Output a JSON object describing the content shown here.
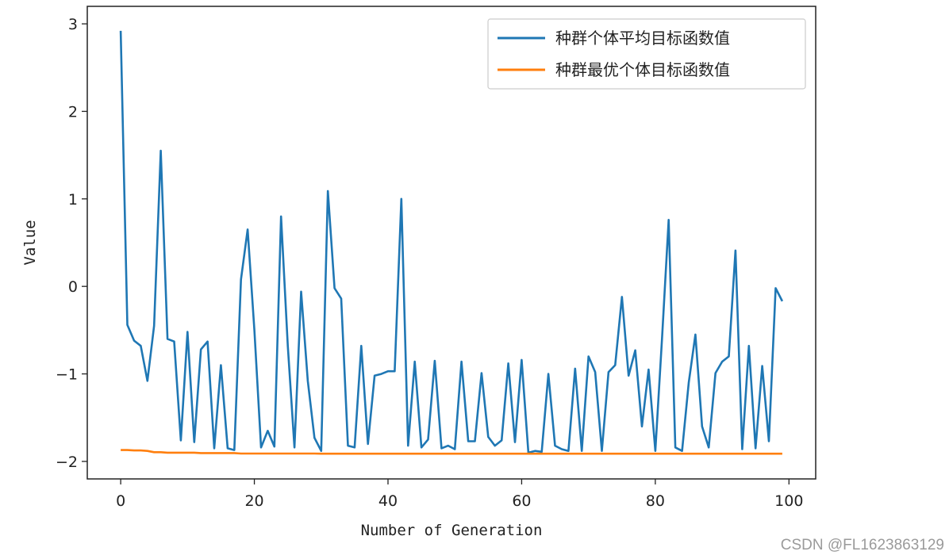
{
  "watermark": "CSDN @FL1623863129",
  "chart_data": {
    "type": "line",
    "title": "",
    "xlabel": "Number of Generation",
    "ylabel": "Value",
    "xlim": [
      -5,
      104
    ],
    "ylim": [
      -2.2,
      3.2
    ],
    "xticks": [
      0,
      20,
      40,
      60,
      80,
      100
    ],
    "yticks": [
      -2,
      -1,
      0,
      1,
      2,
      3
    ],
    "ytick_labels": [
      "−2",
      "−1",
      "0",
      "1",
      "2",
      "3"
    ],
    "grid": false,
    "legend_position": "top-right",
    "series": [
      {
        "name": "种群个体平均目标函数值",
        "color": "#1f77b4",
        "x": [
          0,
          1,
          2,
          3,
          4,
          5,
          6,
          7,
          8,
          9,
          10,
          11,
          12,
          13,
          14,
          15,
          16,
          17,
          18,
          19,
          20,
          21,
          22,
          23,
          24,
          25,
          26,
          27,
          28,
          29,
          30,
          31,
          32,
          33,
          34,
          35,
          36,
          37,
          38,
          39,
          40,
          41,
          42,
          43,
          44,
          45,
          46,
          47,
          48,
          49,
          50,
          51,
          52,
          53,
          54,
          55,
          56,
          57,
          58,
          59,
          60,
          61,
          62,
          63,
          64,
          65,
          66,
          67,
          68,
          69,
          70,
          71,
          72,
          73,
          74,
          75,
          76,
          77,
          78,
          79,
          80,
          81,
          82,
          83,
          84,
          85,
          86,
          87,
          88,
          89,
          90,
          91,
          92,
          93,
          94,
          95,
          96,
          97,
          98,
          99
        ],
        "values": [
          2.92,
          -0.44,
          -0.62,
          -0.68,
          -1.08,
          -0.45,
          1.55,
          -0.6,
          -0.63,
          -1.76,
          -0.52,
          -1.78,
          -0.72,
          -0.63,
          -1.85,
          -0.9,
          -1.85,
          -1.87,
          0.08,
          0.65,
          -0.5,
          -1.84,
          -1.65,
          -1.83,
          0.8,
          -0.68,
          -1.84,
          -0.06,
          -1.08,
          -1.73,
          -1.88,
          1.09,
          -0.02,
          -0.14,
          -1.82,
          -1.84,
          -0.68,
          -1.8,
          -1.02,
          -1.0,
          -0.97,
          -0.97,
          1.0,
          -1.82,
          -0.86,
          -1.84,
          -1.75,
          -0.85,
          -1.85,
          -1.82,
          -1.86,
          -0.86,
          -1.77,
          -1.77,
          -0.99,
          -1.72,
          -1.82,
          -1.76,
          -0.88,
          -1.78,
          -0.84,
          -1.9,
          -1.88,
          -1.89,
          -1.0,
          -1.82,
          -1.86,
          -1.88,
          -0.94,
          -1.88,
          -0.8,
          -0.98,
          -1.88,
          -0.98,
          -0.9,
          -0.12,
          -1.02,
          -0.73,
          -1.6,
          -0.95,
          -1.88,
          -0.6,
          0.76,
          -1.84,
          -1.88,
          -1.1,
          -0.55,
          -1.6,
          -1.84,
          -0.99,
          -0.86,
          -0.8,
          0.41,
          -1.86,
          -0.68,
          -1.85,
          -0.91,
          -1.77,
          -0.02,
          -0.17
        ]
      },
      {
        "name": "种群最优个体目标函数值",
        "color": "#ff7f0e",
        "x": [
          0,
          1,
          2,
          3,
          4,
          5,
          6,
          7,
          8,
          9,
          10,
          11,
          12,
          13,
          14,
          15,
          16,
          17,
          18,
          19,
          20,
          21,
          22,
          23,
          24,
          25,
          26,
          27,
          28,
          29,
          30,
          31,
          32,
          33,
          34,
          35,
          36,
          37,
          38,
          39,
          40,
          41,
          42,
          43,
          44,
          45,
          46,
          47,
          48,
          49,
          50,
          51,
          52,
          53,
          54,
          55,
          56,
          57,
          58,
          59,
          60,
          61,
          62,
          63,
          64,
          65,
          66,
          67,
          68,
          69,
          70,
          71,
          72,
          73,
          74,
          75,
          76,
          77,
          78,
          79,
          80,
          81,
          82,
          83,
          84,
          85,
          86,
          87,
          88,
          89,
          90,
          91,
          92,
          93,
          94,
          95,
          96,
          97,
          98,
          99
        ],
        "values": [
          -1.87,
          -1.87,
          -1.875,
          -1.875,
          -1.88,
          -1.895,
          -1.895,
          -1.9,
          -1.9,
          -1.9,
          -1.9,
          -1.9,
          -1.905,
          -1.905,
          -1.905,
          -1.905,
          -1.905,
          -1.905,
          -1.91,
          -1.91,
          -1.91,
          -1.91,
          -1.91,
          -1.91,
          -1.91,
          -1.91,
          -1.91,
          -1.91,
          -1.91,
          -1.91,
          -1.912,
          -1.912,
          -1.912,
          -1.912,
          -1.912,
          -1.912,
          -1.912,
          -1.912,
          -1.912,
          -1.912,
          -1.912,
          -1.912,
          -1.912,
          -1.912,
          -1.912,
          -1.912,
          -1.912,
          -1.912,
          -1.912,
          -1.912,
          -1.912,
          -1.912,
          -1.912,
          -1.912,
          -1.912,
          -1.912,
          -1.912,
          -1.912,
          -1.912,
          -1.912,
          -1.912,
          -1.912,
          -1.912,
          -1.912,
          -1.912,
          -1.912,
          -1.912,
          -1.912,
          -1.912,
          -1.912,
          -1.912,
          -1.912,
          -1.912,
          -1.912,
          -1.912,
          -1.912,
          -1.912,
          -1.912,
          -1.912,
          -1.912,
          -1.912,
          -1.912,
          -1.912,
          -1.912,
          -1.912,
          -1.912,
          -1.912,
          -1.912,
          -1.912,
          -1.912,
          -1.912,
          -1.912,
          -1.912,
          -1.912,
          -1.912,
          -1.912,
          -1.912,
          -1.912,
          -1.912,
          -1.912
        ]
      }
    ]
  }
}
